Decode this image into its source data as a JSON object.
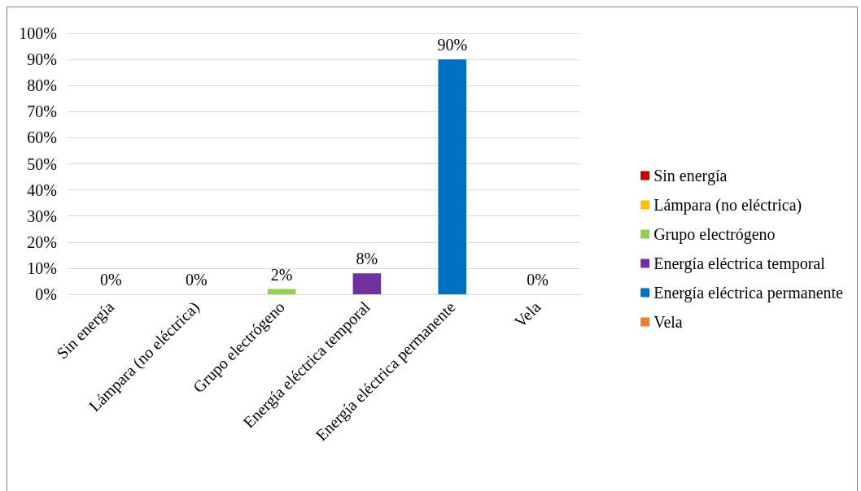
{
  "chart_data": {
    "type": "bar",
    "categories": [
      "Sin energía",
      "Lámpara (no eléctrica)",
      "Grupo electrógeno",
      "Energía eléctrica temporal",
      "Energía eléctrica permanente",
      "Vela"
    ],
    "series": [
      {
        "name": "Sin energía",
        "color": "#c00000",
        "values": [
          0,
          null,
          null,
          null,
          null,
          null
        ],
        "value_labels": [
          "0%",
          null,
          null,
          null,
          null,
          null
        ]
      },
      {
        "name": "Lámpara (no eléctrica)",
        "color": "#ffc000",
        "values": [
          null,
          0,
          null,
          null,
          null,
          null
        ],
        "value_labels": [
          null,
          "0%",
          null,
          null,
          null,
          null
        ]
      },
      {
        "name": "Grupo electrógeno",
        "color": "#92d050",
        "values": [
          null,
          null,
          2,
          null,
          null,
          null
        ],
        "value_labels": [
          null,
          null,
          "2%",
          null,
          null,
          null
        ]
      },
      {
        "name": "Energía eléctrica temporal",
        "color": "#7030a0",
        "values": [
          null,
          null,
          null,
          8,
          null,
          null
        ],
        "value_labels": [
          null,
          null,
          null,
          "8%",
          null,
          null
        ]
      },
      {
        "name": "Energía eléctrica permanente",
        "color": "#0070c0",
        "values": [
          null,
          null,
          null,
          null,
          90,
          null
        ],
        "value_labels": [
          null,
          null,
          null,
          null,
          "90%",
          null
        ]
      },
      {
        "name": "Vela",
        "color": "#ed7d31",
        "values": [
          null,
          null,
          null,
          null,
          null,
          0
        ],
        "value_labels": [
          null,
          null,
          null,
          null,
          null,
          "0%"
        ]
      }
    ],
    "ylim": [
      0,
      100
    ],
    "yticks": [
      {
        "value": 0,
        "label": "0%"
      },
      {
        "value": 10,
        "label": "10%"
      },
      {
        "value": 20,
        "label": "20%"
      },
      {
        "value": 30,
        "label": "30%"
      },
      {
        "value": 40,
        "label": "40%"
      },
      {
        "value": 50,
        "label": "50%"
      },
      {
        "value": 60,
        "label": "60%"
      },
      {
        "value": 70,
        "label": "70%"
      },
      {
        "value": 80,
        "label": "80%"
      },
      {
        "value": 90,
        "label": "90%"
      },
      {
        "value": 100,
        "label": "100%"
      }
    ],
    "grid": "y",
    "legend": "right"
  }
}
